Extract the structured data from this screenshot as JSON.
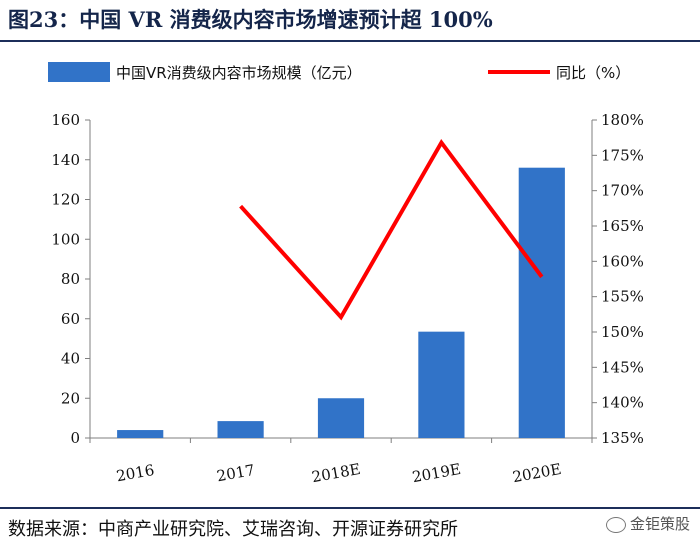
{
  "header": {
    "title": "图23：中国 VR 消费级内容市场增速预计超 100%"
  },
  "footer": {
    "source": "数据来源：中商产业研究院、艾瑞咨询、开源证券研究所",
    "watermark": "金钜策股"
  },
  "colors": {
    "bar": "#3173c8",
    "line": "#ff0000",
    "axis": "#7f7f7f",
    "title": "#14254a"
  },
  "chart_data": {
    "type": "bar",
    "categories": [
      "2016",
      "2017",
      "2018E",
      "2019E",
      "2020E"
    ],
    "series": [
      {
        "name": "中国VR消费级内容市场规模（亿元）",
        "type": "bar",
        "axis": "left",
        "values": [
          4,
          8.5,
          20,
          53.5,
          136
        ]
      },
      {
        "name": "同比（%）",
        "type": "line",
        "axis": "right",
        "values": [
          null,
          167.8,
          152.1,
          176.8,
          157.8
        ]
      }
    ],
    "y_left": {
      "min": 0,
      "max": 160,
      "ticks": [
        "0",
        "20",
        "40",
        "60",
        "80",
        "100",
        "120",
        "140",
        "160"
      ]
    },
    "y_right": {
      "min": 135,
      "max": 180,
      "ticks": [
        "135%",
        "140%",
        "145%",
        "150%",
        "155%",
        "160%",
        "165%",
        "170%",
        "175%",
        "180%"
      ]
    },
    "legend": "top",
    "grid": false
  }
}
